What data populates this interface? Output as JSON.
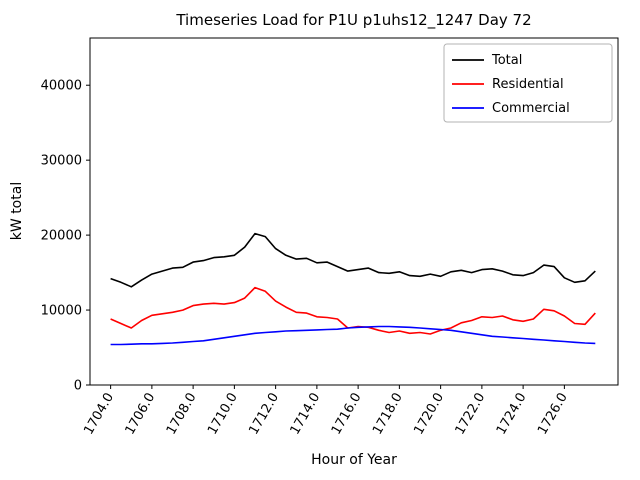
{
  "chart_data": {
    "type": "line",
    "title": "Timeseries Load for P1U p1uhs12_1247  Day 72",
    "xlabel": "Hour of Year",
    "ylabel": "kW total",
    "grid": false,
    "legend_position": "upper right",
    "xlim": [
      1703.0,
      1728.6
    ],
    "ylim": [
      0,
      46300
    ],
    "xticks": [
      1704,
      1706,
      1708,
      1710,
      1712,
      1714,
      1716,
      1718,
      1720,
      1722,
      1724,
      1726
    ],
    "xtick_labels": [
      "1704.0",
      "1706.0",
      "1708.0",
      "1710.0",
      "1712.0",
      "1714.0",
      "1716.0",
      "1718.0",
      "1720.0",
      "1722.0",
      "1724.0",
      "1726.0"
    ],
    "yticks": [
      0,
      10000,
      20000,
      30000,
      40000
    ],
    "ytick_labels": [
      "0",
      "10000",
      "20000",
      "30000",
      "40000"
    ],
    "x": [
      1704.0,
      1704.5,
      1705.0,
      1705.5,
      1706.0,
      1706.5,
      1707.0,
      1707.5,
      1708.0,
      1708.5,
      1709.0,
      1709.5,
      1710.0,
      1710.5,
      1711.0,
      1711.5,
      1712.0,
      1712.5,
      1713.0,
      1713.5,
      1714.0,
      1714.5,
      1715.0,
      1715.5,
      1716.0,
      1716.5,
      1717.0,
      1717.5,
      1718.0,
      1718.5,
      1719.0,
      1719.5,
      1720.0,
      1720.5,
      1721.0,
      1721.5,
      1722.0,
      1722.5,
      1723.0,
      1723.5,
      1724.0,
      1724.5,
      1725.0,
      1725.5,
      1726.0,
      1726.5,
      1727.0,
      1727.5
    ],
    "series": [
      {
        "name": "Total",
        "color": "#000000",
        "values": [
          14200,
          13700,
          13100,
          14000,
          14800,
          15200,
          15600,
          15700,
          16400,
          16600,
          17000,
          17100,
          17300,
          18400,
          20200,
          19800,
          18200,
          17300,
          16800,
          16900,
          16300,
          16400,
          15800,
          15200,
          15400,
          15600,
          15000,
          14900,
          15100,
          14600,
          14500,
          14800,
          14500,
          15100,
          15300,
          15000,
          15400,
          15500,
          15200,
          14700,
          14600,
          15000,
          16000,
          15800,
          14300,
          13700,
          13900,
          15200
        ]
      },
      {
        "name": "Residential",
        "color": "#ff0000",
        "values": [
          8800,
          8200,
          7600,
          8600,
          9300,
          9500,
          9700,
          10000,
          10600,
          10800,
          10900,
          10800,
          11000,
          11600,
          13000,
          12500,
          11200,
          10400,
          9700,
          9600,
          9100,
          9000,
          8800,
          7600,
          7800,
          7700,
          7300,
          7000,
          7200,
          6900,
          7000,
          6800,
          7300,
          7600,
          8300,
          8600,
          9100,
          9000,
          9200,
          8700,
          8500,
          8800,
          10100,
          9900,
          9200,
          8200,
          8100,
          9600
        ]
      },
      {
        "name": "Commercial",
        "color": "#0000ff",
        "values": [
          5400,
          5400,
          5450,
          5500,
          5500,
          5550,
          5600,
          5700,
          5800,
          5900,
          6100,
          6300,
          6500,
          6700,
          6900,
          7000,
          7100,
          7200,
          7250,
          7300,
          7350,
          7400,
          7450,
          7600,
          7700,
          7750,
          7800,
          7800,
          7750,
          7700,
          7600,
          7500,
          7400,
          7300,
          7100,
          6900,
          6700,
          6500,
          6400,
          6300,
          6200,
          6100,
          6000,
          5900,
          5800,
          5700,
          5600,
          5550
        ]
      }
    ]
  }
}
